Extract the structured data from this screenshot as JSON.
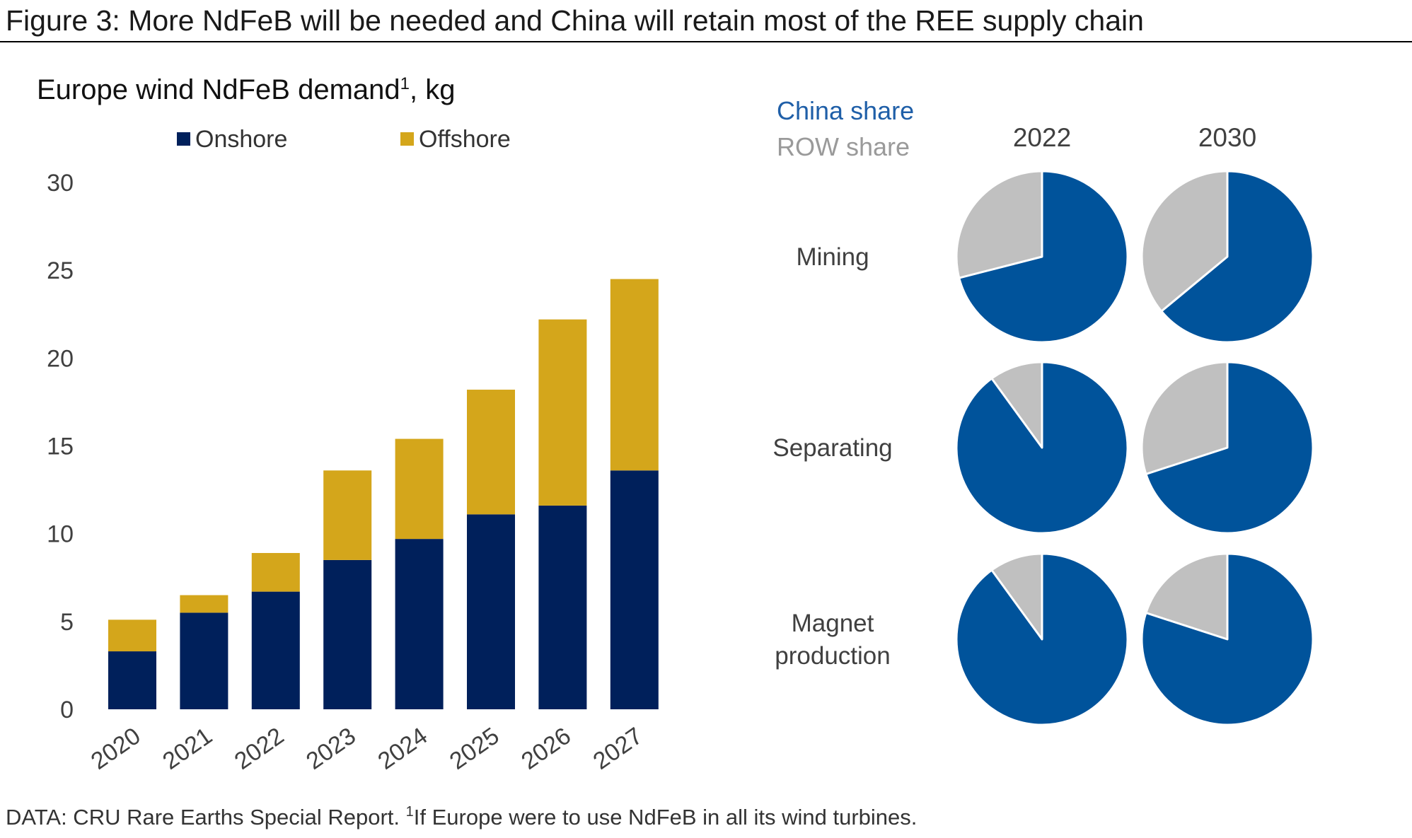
{
  "header": {
    "title": "Figure 3: More NdFeB will be needed and China will retain most of the REE supply chain"
  },
  "footnote": {
    "source": "DATA: CRU Rare Earths Special Report. ",
    "marker": "1",
    "text": "If Europe were to use NdFeB in all its wind turbines."
  },
  "colors": {
    "onshore": "#00205b",
    "offshore": "#d4a61b",
    "china": "#00539b",
    "row": "#c0c0c0",
    "china_text": "#1f5fa8",
    "row_text": "#9a9a9a"
  },
  "chart_data": [
    {
      "type": "bar",
      "stacked": true,
      "title": "Europe wind NdFeB demand",
      "title_sup": "1",
      "title_suffix": ", kg",
      "categories": [
        "2020",
        "2021",
        "2022",
        "2023",
        "2024",
        "2025",
        "2026",
        "2027"
      ],
      "series": [
        {
          "name": "Onshore",
          "values": [
            3.3,
            5.5,
            6.7,
            8.5,
            9.7,
            11.1,
            11.6,
            13.6
          ]
        },
        {
          "name": "Offshore",
          "values": [
            1.8,
            1.0,
            2.2,
            5.1,
            5.7,
            7.1,
            10.6,
            10.9
          ]
        }
      ],
      "ylim": [
        0,
        30
      ],
      "yticks": [
        "0",
        "5",
        "10",
        "15",
        "20",
        "25",
        "30"
      ],
      "legend": "top"
    },
    {
      "type": "pie",
      "legend": [
        {
          "name": "China share"
        },
        {
          "name": "ROW share"
        }
      ],
      "columns": [
        "2022",
        "2030"
      ],
      "rows": [
        {
          "label": [
            "Mining"
          ],
          "china_share": [
            71,
            64
          ]
        },
        {
          "label": [
            "Separating"
          ],
          "china_share": [
            90,
            70
          ]
        },
        {
          "label": [
            "Magnet",
            "production"
          ],
          "china_share": [
            90,
            80
          ]
        }
      ]
    }
  ]
}
